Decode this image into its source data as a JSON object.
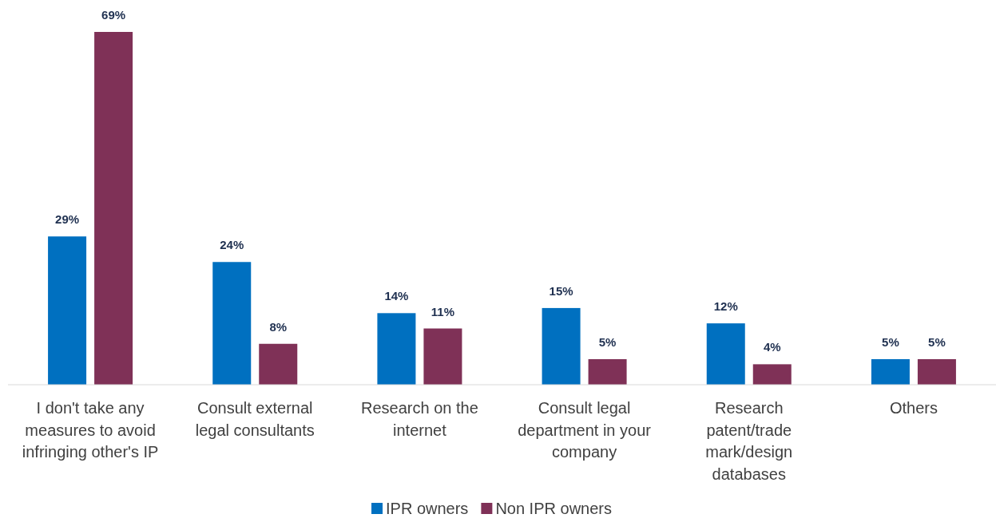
{
  "chart_data": {
    "type": "bar",
    "categories": [
      "I don't take any measures to avoid infringing other's IP",
      "Consult external legal consultants",
      "Research on the internet",
      "Consult legal department in your company",
      "Research patent/trade mark/design databases",
      "Others"
    ],
    "series": [
      {
        "name": "IPR owners",
        "color": "#0070c0",
        "values": [
          29,
          24,
          14,
          15,
          12,
          5
        ],
        "value_labels": [
          "29%",
          "24%",
          "14%",
          "15%",
          "12%",
          "5%"
        ]
      },
      {
        "name": "Non IPR owners",
        "color": "#7f3157",
        "values": [
          69,
          8,
          11,
          5,
          4,
          5
        ],
        "value_labels": [
          "69%",
          "8%",
          "11%",
          "5%",
          "4%",
          "5%"
        ]
      }
    ],
    "legend": "bottom"
  }
}
